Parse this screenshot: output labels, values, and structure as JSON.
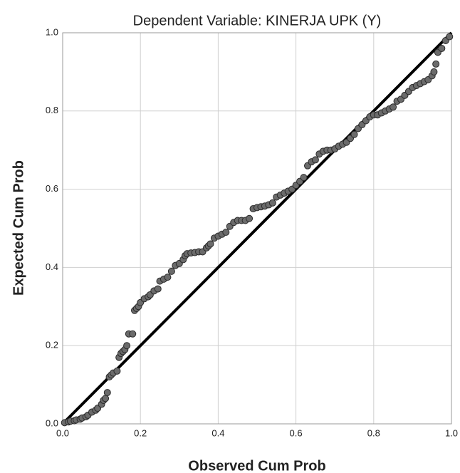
{
  "chart_data": {
    "type": "scatter",
    "title": "Dependent Variable: KINERJA UPK (Y)",
    "x_label": "Observed Cum Prob",
    "y_label": "Expected Cum Prob",
    "xlim": [
      0,
      1
    ],
    "ylim": [
      0,
      1
    ],
    "xticks": [
      {
        "value": 0,
        "label": "0.0"
      },
      0.2,
      0.4,
      0.6,
      0.8,
      {
        "value": 1,
        "label": "1.0"
      }
    ],
    "yticks": [
      {
        "value": 0,
        "label": "0.0"
      },
      0.2,
      0.4,
      0.6,
      0.8,
      {
        "value": 1,
        "label": "1.0"
      }
    ],
    "grid": true,
    "color": "#6b6b6b",
    "line_color": "#000000",
    "x": [
      0.005,
      0.015,
      0.02,
      0.03,
      0.035,
      0.045,
      0.05,
      0.06,
      0.065,
      0.075,
      0.085,
      0.09,
      0.1,
      0.105,
      0.11,
      0.115,
      0.12,
      0.125,
      0.13,
      0.14,
      0.145,
      0.15,
      0.155,
      0.16,
      0.165,
      0.17,
      0.18,
      0.185,
      0.19,
      0.195,
      0.2,
      0.21,
      0.22,
      0.225,
      0.235,
      0.245,
      0.25,
      0.26,
      0.27,
      0.28,
      0.29,
      0.3,
      0.31,
      0.315,
      0.32,
      0.33,
      0.34,
      0.35,
      0.36,
      0.37,
      0.375,
      0.38,
      0.39,
      0.4,
      0.41,
      0.42,
      0.43,
      0.44,
      0.45,
      0.46,
      0.47,
      0.48,
      0.49,
      0.5,
      0.51,
      0.52,
      0.53,
      0.54,
      0.55,
      0.56,
      0.57,
      0.58,
      0.59,
      0.6,
      0.61,
      0.62,
      0.63,
      0.64,
      0.65,
      0.66,
      0.67,
      0.68,
      0.69,
      0.7,
      0.71,
      0.72,
      0.73,
      0.74,
      0.75,
      0.76,
      0.77,
      0.78,
      0.79,
      0.8,
      0.81,
      0.82,
      0.83,
      0.84,
      0.85,
      0.86,
      0.87,
      0.88,
      0.89,
      0.9,
      0.91,
      0.92,
      0.93,
      0.94,
      0.95,
      0.955,
      0.96,
      0.965,
      0.975,
      0.985,
      0.995
    ],
    "values": [
      0.003,
      0.005,
      0.007,
      0.008,
      0.01,
      0.012,
      0.015,
      0.018,
      0.022,
      0.03,
      0.035,
      0.04,
      0.05,
      0.06,
      0.065,
      0.08,
      0.12,
      0.125,
      0.13,
      0.135,
      0.17,
      0.18,
      0.185,
      0.19,
      0.2,
      0.23,
      0.23,
      0.29,
      0.295,
      0.3,
      0.31,
      0.32,
      0.325,
      0.33,
      0.34,
      0.345,
      0.365,
      0.37,
      0.375,
      0.39,
      0.405,
      0.41,
      0.42,
      0.43,
      0.435,
      0.437,
      0.438,
      0.44,
      0.44,
      0.45,
      0.455,
      0.46,
      0.475,
      0.48,
      0.485,
      0.49,
      0.505,
      0.515,
      0.52,
      0.52,
      0.52,
      0.525,
      0.55,
      0.553,
      0.555,
      0.557,
      0.56,
      0.565,
      0.58,
      0.585,
      0.59,
      0.595,
      0.6,
      0.61,
      0.62,
      0.63,
      0.66,
      0.67,
      0.675,
      0.69,
      0.697,
      0.7,
      0.7,
      0.703,
      0.71,
      0.715,
      0.72,
      0.73,
      0.74,
      0.755,
      0.765,
      0.775,
      0.785,
      0.79,
      0.79,
      0.795,
      0.8,
      0.805,
      0.81,
      0.825,
      0.83,
      0.84,
      0.85,
      0.86,
      0.865,
      0.87,
      0.875,
      0.88,
      0.89,
      0.9,
      0.92,
      0.95,
      0.96,
      0.98,
      0.99
    ]
  }
}
